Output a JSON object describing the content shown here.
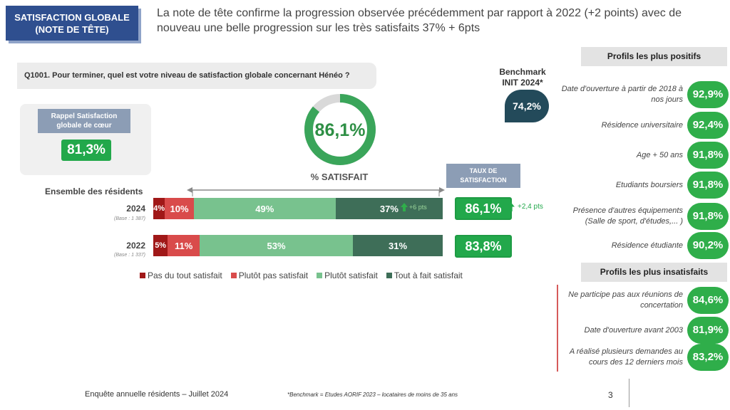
{
  "title_box": {
    "line1": "SATISFACTION GLOBALE",
    "line2": "(NOTE DE TÊTE)"
  },
  "headline": "La note de tête confirme la progression observée précédemment par rapport à 2022 (+2 points) avec de nouveau une belle progression sur les très satisfaits 37% + 6pts",
  "question": "Q1001. Pour terminer, quel est votre niveau de satisfaction globale concernant Hénéo ?",
  "rappel": {
    "label": "Rappel Satisfaction globale de cœur",
    "value": "81,3%"
  },
  "donut": {
    "value_text": "86,1%",
    "value": 86.1,
    "label": "% SATISFAIT",
    "color": "#3aa55a",
    "track": "#d9d9d9"
  },
  "benchmark": {
    "title": "Benchmark INIT 2024*",
    "value": "74,2%"
  },
  "ensemble_label": "Ensemble des résidents",
  "chart_data": {
    "type": "bar",
    "orientation": "horizontal",
    "stacked": true,
    "categories": [
      "2024",
      "2022"
    ],
    "bases": [
      "(Base : 1 387)",
      "(Base : 1 337)"
    ],
    "series": [
      {
        "name": "Pas du tout satisfait",
        "color": "#a01818",
        "values": [
          4,
          5
        ],
        "labels": [
          "4%",
          "5%"
        ]
      },
      {
        "name": "Plutôt pas satisfait",
        "color": "#d94b4b",
        "values": [
          10,
          11
        ],
        "labels": [
          "10%",
          "11%"
        ]
      },
      {
        "name": "Plutôt satisfait",
        "color": "#78c28e",
        "values": [
          49,
          53
        ],
        "labels": [
          "49%",
          "53%"
        ]
      },
      {
        "name": "Tout à fait satisfait",
        "color": "#3e6e58",
        "values": [
          37,
          31
        ],
        "labels": [
          "37%",
          "31%"
        ]
      }
    ],
    "inbar_delta": "+6 pts",
    "legend_position": "bottom"
  },
  "taux": {
    "label": "TAUX DE SATISFACTION",
    "values": [
      "86,1%",
      "83,8%"
    ],
    "delta": "+2,4 pts"
  },
  "positive": {
    "title": "Profils les plus positifs",
    "items": [
      {
        "label": "Date d'ouverture à partir de 2018 à nos jours",
        "value": "92,9%"
      },
      {
        "label": "Résidence universitaire",
        "value": "92,4%"
      },
      {
        "label": "Age + 50 ans",
        "value": "91,8%"
      },
      {
        "label": "Etudiants boursiers",
        "value": "91,8%"
      },
      {
        "label": "Présence d'autres équipements (Salle de sport, d'études,... )",
        "value": "91,8%"
      },
      {
        "label": "Résidence étudiante",
        "value": "90,2%"
      }
    ]
  },
  "negative": {
    "title": "Profils les plus insatisfaits",
    "items": [
      {
        "label": "Ne participe pas aux réunions de concertation",
        "value": "84,6%"
      },
      {
        "label": "Date d'ouverture avant 2003",
        "value": "81,9%"
      },
      {
        "label": "A réalisé plusieurs demandes au cours des 12 derniers mois",
        "value": "83,2%"
      }
    ]
  },
  "footer": {
    "left": "Enquête annuelle résidents – Juillet 2024",
    "note": "*Benchmark = Etudes AORIF 2023 – locataires de moins de 35 ans",
    "page": "3"
  }
}
